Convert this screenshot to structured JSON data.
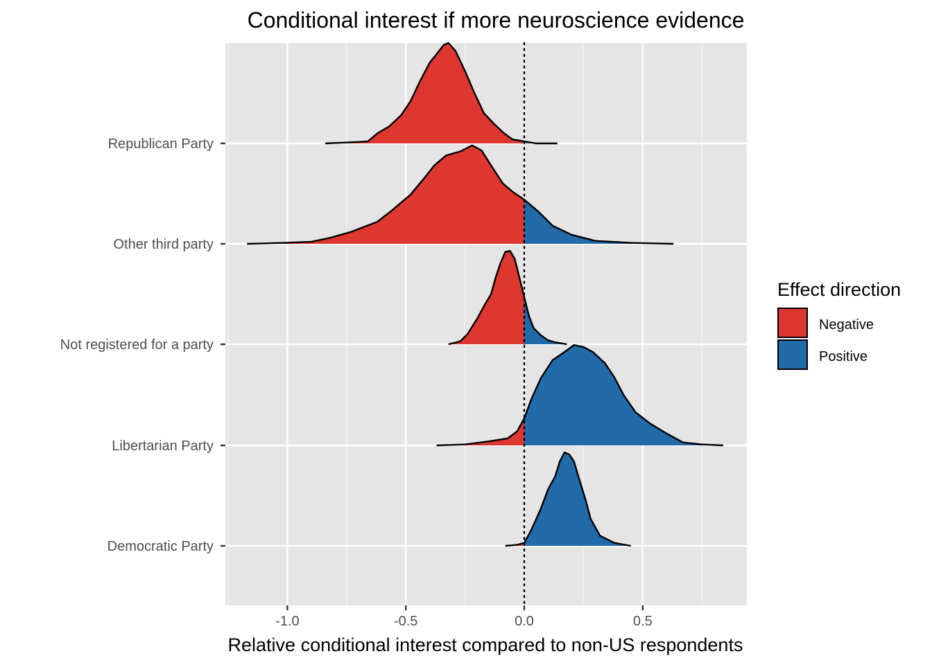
{
  "chart_data": {
    "type": "ridgeline",
    "title": "Conditional interest if more neuroscience evidence",
    "xlabel": "Relative conditional interest compared to non-US respondents",
    "ylabel": "",
    "xlim": [
      -1.25,
      0.95
    ],
    "x_ticks": [
      -1.0,
      -0.5,
      0.0,
      0.5
    ],
    "x_tick_labels": [
      "-1.0",
      "-0.5",
      "0.0",
      "0.5"
    ],
    "reference_line": {
      "x": 0.0,
      "style": "dotted"
    },
    "grid": true,
    "legend": {
      "title": "Effect direction",
      "position": "right",
      "entries": [
        {
          "label": "Negative",
          "color": "#de3730"
        },
        {
          "label": "Positive",
          "color": "#226baa"
        }
      ]
    },
    "categories": [
      "Republican Party",
      "Other third party",
      "Not registered for a party",
      "Libertarian Party",
      "Democratic Party"
    ],
    "series": [
      {
        "name": "Republican Party",
        "density": [
          [
            -0.84,
            0.0
          ],
          [
            -0.74,
            0.01
          ],
          [
            -0.66,
            0.02
          ],
          [
            -0.62,
            0.1
          ],
          [
            -0.57,
            0.17
          ],
          [
            -0.52,
            0.28
          ],
          [
            -0.48,
            0.42
          ],
          [
            -0.44,
            0.62
          ],
          [
            -0.4,
            0.8
          ],
          [
            -0.37,
            0.89
          ],
          [
            -0.34,
            0.98
          ],
          [
            -0.32,
            1.0
          ],
          [
            -0.29,
            0.92
          ],
          [
            -0.25,
            0.72
          ],
          [
            -0.21,
            0.5
          ],
          [
            -0.17,
            0.3
          ],
          [
            -0.13,
            0.2
          ],
          [
            -0.09,
            0.11
          ],
          [
            -0.05,
            0.04
          ],
          [
            0.0,
            0.02
          ],
          [
            0.05,
            0.0
          ],
          [
            0.14,
            0.0
          ]
        ]
      },
      {
        "name": "Other third party",
        "density": [
          [
            -1.17,
            0.0
          ],
          [
            -1.02,
            0.01
          ],
          [
            -0.9,
            0.02
          ],
          [
            -0.82,
            0.06
          ],
          [
            -0.73,
            0.12
          ],
          [
            -0.62,
            0.22
          ],
          [
            -0.56,
            0.33
          ],
          [
            -0.48,
            0.49
          ],
          [
            -0.42,
            0.66
          ],
          [
            -0.38,
            0.78
          ],
          [
            -0.33,
            0.88
          ],
          [
            -0.27,
            0.92
          ],
          [
            -0.22,
            0.98
          ],
          [
            -0.18,
            0.93
          ],
          [
            -0.14,
            0.78
          ],
          [
            -0.09,
            0.6
          ],
          [
            -0.05,
            0.52
          ],
          [
            0.0,
            0.44
          ],
          [
            0.06,
            0.32
          ],
          [
            0.12,
            0.18
          ],
          [
            0.2,
            0.09
          ],
          [
            0.3,
            0.03
          ],
          [
            0.45,
            0.01
          ],
          [
            0.63,
            0.0
          ]
        ]
      },
      {
        "name": "Not registered for a party",
        "density": [
          [
            -0.32,
            0.0
          ],
          [
            -0.27,
            0.03
          ],
          [
            -0.24,
            0.1
          ],
          [
            -0.2,
            0.25
          ],
          [
            -0.17,
            0.38
          ],
          [
            -0.14,
            0.5
          ],
          [
            -0.12,
            0.67
          ],
          [
            -0.1,
            0.81
          ],
          [
            -0.08,
            0.92
          ],
          [
            -0.06,
            0.93
          ],
          [
            -0.04,
            0.85
          ],
          [
            -0.02,
            0.66
          ],
          [
            0.0,
            0.47
          ],
          [
            0.02,
            0.28
          ],
          [
            0.04,
            0.16
          ],
          [
            0.07,
            0.09
          ],
          [
            0.1,
            0.04
          ],
          [
            0.13,
            0.02
          ],
          [
            0.18,
            0.0
          ]
        ]
      },
      {
        "name": "Libertarian Party",
        "density": [
          [
            -0.37,
            0.0
          ],
          [
            -0.25,
            0.01
          ],
          [
            -0.15,
            0.04
          ],
          [
            -0.07,
            0.07
          ],
          [
            -0.03,
            0.14
          ],
          [
            0.0,
            0.27
          ],
          [
            0.03,
            0.46
          ],
          [
            0.07,
            0.67
          ],
          [
            0.12,
            0.85
          ],
          [
            0.17,
            0.93
          ],
          [
            0.21,
            1.0
          ],
          [
            0.25,
            0.98
          ],
          [
            0.29,
            0.93
          ],
          [
            0.34,
            0.82
          ],
          [
            0.38,
            0.68
          ],
          [
            0.42,
            0.5
          ],
          [
            0.47,
            0.33
          ],
          [
            0.53,
            0.22
          ],
          [
            0.6,
            0.12
          ],
          [
            0.67,
            0.03
          ],
          [
            0.75,
            0.01
          ],
          [
            0.84,
            0.0
          ]
        ]
      },
      {
        "name": "Democratic Party",
        "density": [
          [
            -0.08,
            0.0
          ],
          [
            -0.03,
            0.01
          ],
          [
            0.0,
            0.03
          ],
          [
            0.03,
            0.16
          ],
          [
            0.07,
            0.37
          ],
          [
            0.1,
            0.56
          ],
          [
            0.13,
            0.69
          ],
          [
            0.15,
            0.84
          ],
          [
            0.17,
            0.93
          ],
          [
            0.19,
            0.91
          ],
          [
            0.21,
            0.84
          ],
          [
            0.23,
            0.68
          ],
          [
            0.26,
            0.45
          ],
          [
            0.28,
            0.27
          ],
          [
            0.32,
            0.1
          ],
          [
            0.38,
            0.03
          ],
          [
            0.45,
            0.0
          ]
        ]
      }
    ]
  }
}
